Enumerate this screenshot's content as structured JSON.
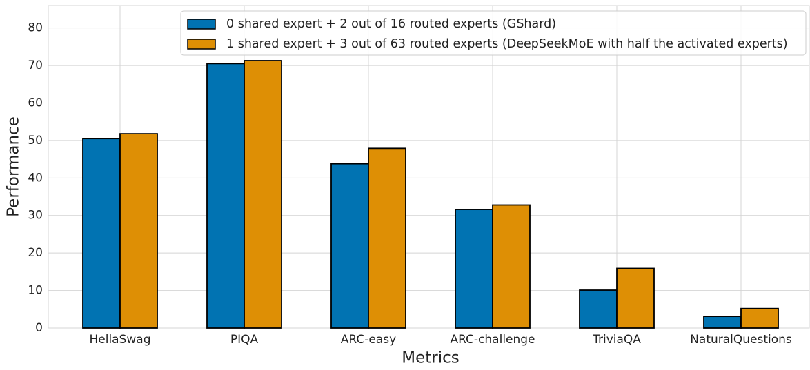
{
  "chart_data": {
    "type": "bar",
    "xlabel": "Metrics",
    "ylabel": "Performance",
    "categories": [
      "HellaSwag",
      "PIQA",
      "ARC-easy",
      "ARC-challenge",
      "TriviaQA",
      "NaturalQuestions"
    ],
    "series": [
      {
        "name": "0 shared expert + 2 out of 16 routed experts (GShard)",
        "color": "#0173b2",
        "values": [
          50.5,
          70.5,
          43.8,
          31.6,
          10.1,
          3.1
        ]
      },
      {
        "name": "1 shared expert + 3 out of 63 routed experts (DeepSeekMoE with half the activated experts)",
        "color": "#de8f05",
        "values": [
          51.8,
          71.3,
          47.9,
          32.8,
          15.9,
          5.2
        ]
      }
    ],
    "ylim": [
      0,
      86
    ],
    "yticks": [
      0,
      10,
      20,
      30,
      40,
      50,
      60,
      70,
      80
    ],
    "grid": true,
    "legend": "upper center"
  }
}
